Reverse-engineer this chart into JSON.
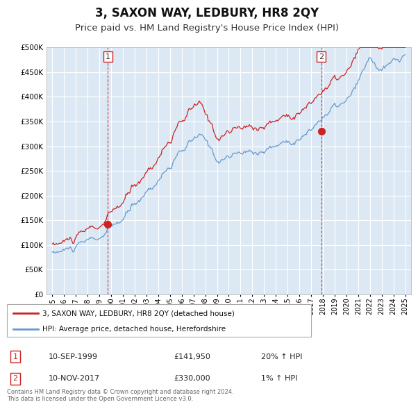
{
  "title": "3, SAXON WAY, LEDBURY, HR8 2QY",
  "subtitle": "Price paid vs. HM Land Registry's House Price Index (HPI)",
  "title_fontsize": 12,
  "subtitle_fontsize": 9.5,
  "ylim": [
    0,
    500000
  ],
  "yticks": [
    0,
    50000,
    100000,
    150000,
    200000,
    250000,
    300000,
    350000,
    400000,
    450000,
    500000
  ],
  "xlim_start": 1994.5,
  "xlim_end": 2025.5,
  "background_color": "#ffffff",
  "plot_bg_color": "#dce9f5",
  "grid_color": "#ffffff",
  "legend1_label": "3, SAXON WAY, LEDBURY, HR8 2QY (detached house)",
  "legend2_label": "HPI: Average price, detached house, Herefordshire",
  "sale1_date": "10-SEP-1999",
  "sale1_price": "£141,950",
  "sale1_hpi": "20% ↑ HPI",
  "sale1_x": 1999.71,
  "sale1_y": 141950,
  "sale2_date": "10-NOV-2017",
  "sale2_price": "£330,000",
  "sale2_hpi": "1% ↑ HPI",
  "sale2_x": 2017.87,
  "sale2_y": 330000,
  "footer": "Contains HM Land Registry data © Crown copyright and database right 2024.\nThis data is licensed under the Open Government Licence v3.0.",
  "line_red_color": "#cc2222",
  "line_blue_color": "#6699cc",
  "vline_color": "#cc2222"
}
